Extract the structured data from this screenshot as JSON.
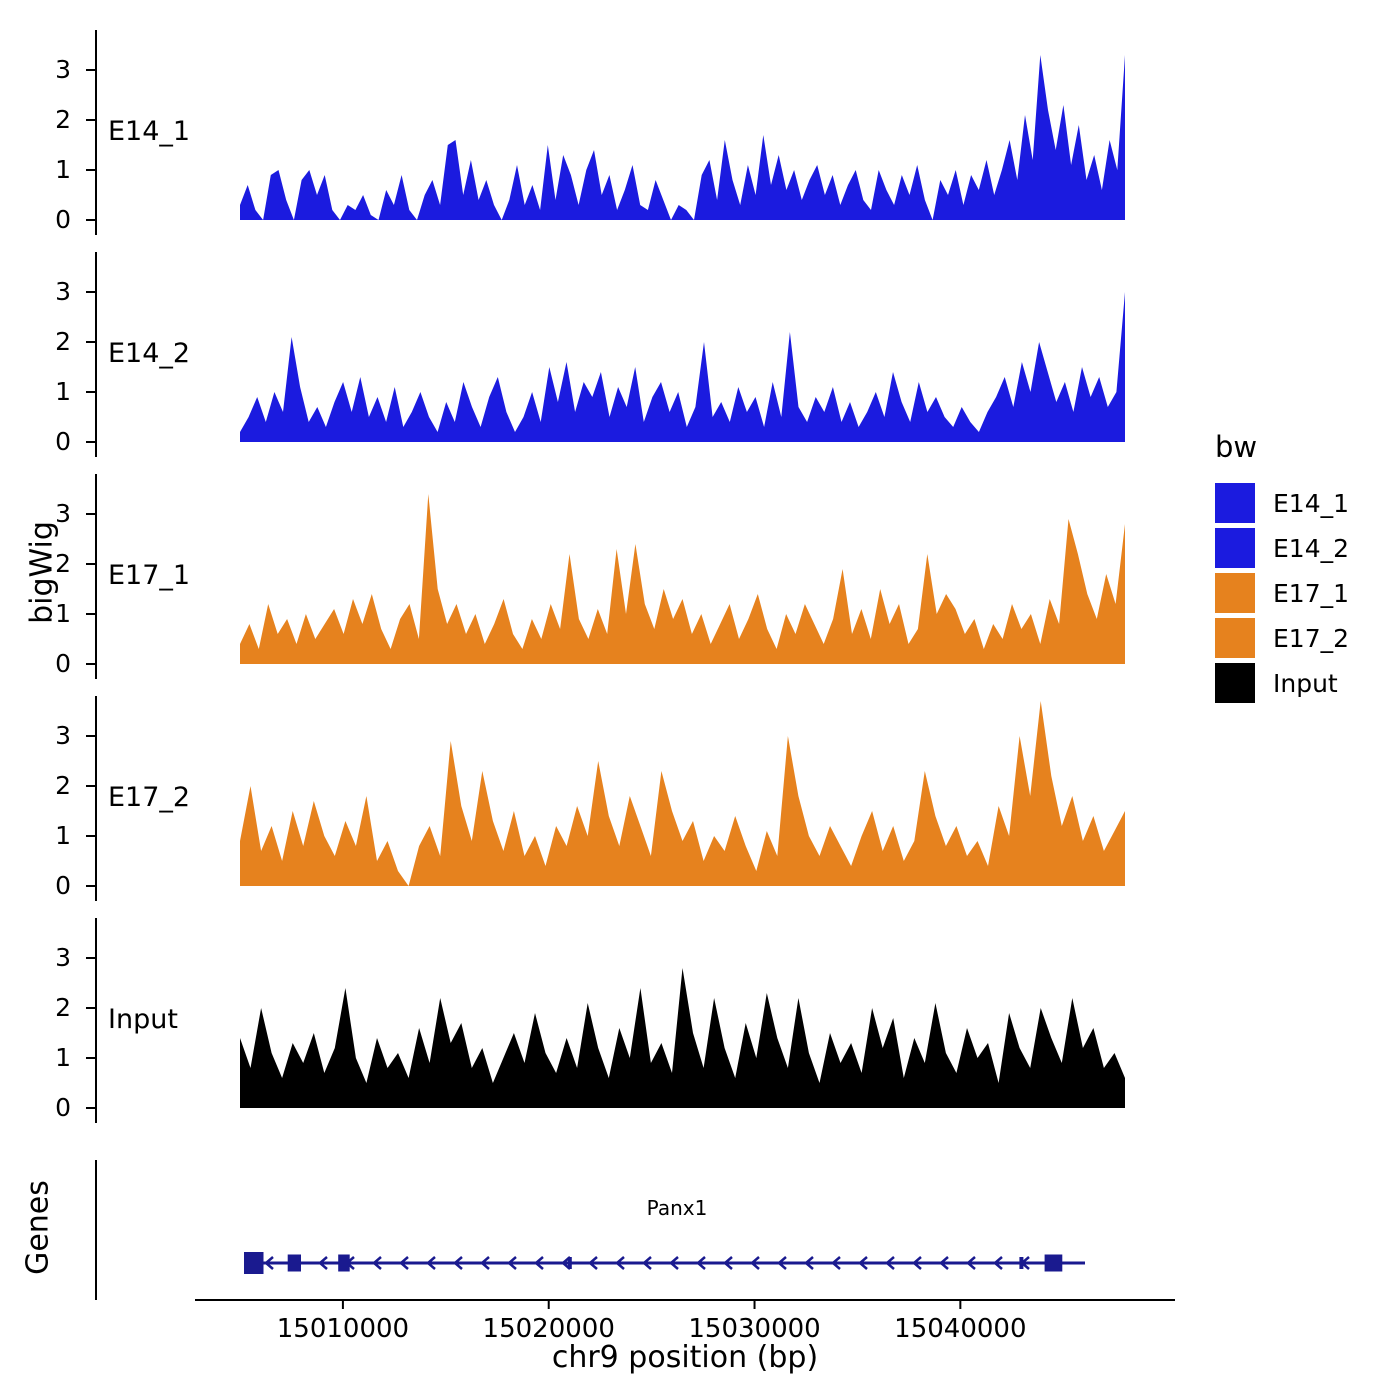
{
  "ylab": "bigWig",
  "genes_label": "Genes",
  "xlab": "chr9 position (bp)",
  "legend": {
    "title": "bw",
    "entries": [
      {
        "label": "E14_1",
        "color": "#1B1BDF"
      },
      {
        "label": "E14_2",
        "color": "#1B1BDF"
      },
      {
        "label": "E17_1",
        "color": "#E6821E"
      },
      {
        "label": "E17_2",
        "color": "#E6821E"
      },
      {
        "label": "Input",
        "color": "#000000"
      }
    ]
  },
  "chart_data": {
    "type": "area",
    "title": "",
    "xlabel": "chr9 position (bp)",
    "ylabel": "bigWig",
    "x_range": [
      15005000,
      15048000
    ],
    "x_ticks": [
      15010000,
      15020000,
      15030000,
      15040000
    ],
    "y_ticks": [
      0,
      1,
      2,
      3
    ],
    "ylim": [
      0,
      3.7
    ],
    "grid": false,
    "legend_position": "right",
    "tracks": [
      {
        "name": "E14_1",
        "color": "#1B1BDF",
        "values": [
          0.3,
          0.7,
          0.2,
          0,
          0.9,
          1.0,
          0.4,
          0,
          0.8,
          1.0,
          0.5,
          0.9,
          0.2,
          0,
          0.3,
          0.2,
          0.5,
          0.1,
          0,
          0.6,
          0.3,
          0.9,
          0.2,
          0,
          0.5,
          0.8,
          0.3,
          1.5,
          1.6,
          0.5,
          1.2,
          0.4,
          0.8,
          0.3,
          0,
          0.4,
          1.1,
          0.3,
          0.7,
          0.2,
          1.5,
          0.4,
          1.3,
          0.9,
          0.3,
          1.0,
          1.4,
          0.5,
          0.9,
          0.2,
          0.6,
          1.1,
          0.3,
          0.2,
          0.8,
          0.4,
          0,
          0.3,
          0.2,
          0,
          0.9,
          1.2,
          0.4,
          1.6,
          0.8,
          0.3,
          1.1,
          0.5,
          1.7,
          0.7,
          1.3,
          0.6,
          1.0,
          0.4,
          0.8,
          1.1,
          0.5,
          0.9,
          0.3,
          0.7,
          1.0,
          0.4,
          0.2,
          1.0,
          0.6,
          0.3,
          0.9,
          0.5,
          1.1,
          0.4,
          0,
          0.8,
          0.5,
          1.0,
          0.3,
          0.9,
          0.6,
          1.2,
          0.5,
          1.0,
          1.6,
          0.8,
          2.1,
          1.2,
          3.3,
          2.2,
          1.4,
          2.3,
          1.1,
          1.9,
          0.8,
          1.3,
          0.6,
          1.6,
          1.0,
          3.3
        ]
      },
      {
        "name": "E14_2",
        "color": "#1B1BDF",
        "values": [
          0.2,
          0.5,
          0.9,
          0.4,
          1.0,
          0.6,
          2.1,
          1.1,
          0.4,
          0.7,
          0.3,
          0.8,
          1.2,
          0.6,
          1.3,
          0.5,
          0.9,
          0.4,
          1.1,
          0.3,
          0.6,
          1.0,
          0.5,
          0.2,
          0.8,
          0.4,
          1.2,
          0.7,
          0.3,
          0.9,
          1.3,
          0.6,
          0.2,
          0.5,
          1.0,
          0.4,
          1.5,
          0.8,
          1.6,
          0.6,
          1.2,
          0.9,
          1.4,
          0.5,
          1.1,
          0.7,
          1.5,
          0.4,
          0.9,
          1.2,
          0.6,
          1.0,
          0.3,
          0.7,
          2.0,
          0.5,
          0.8,
          0.4,
          1.1,
          0.6,
          0.9,
          0.3,
          1.2,
          0.5,
          2.2,
          0.7,
          0.4,
          0.9,
          0.6,
          1.1,
          0.4,
          0.8,
          0.3,
          0.6,
          1.0,
          0.5,
          1.4,
          0.8,
          0.4,
          1.2,
          0.6,
          0.9,
          0.5,
          0.3,
          0.7,
          0.4,
          0.2,
          0.6,
          0.9,
          1.3,
          0.7,
          1.6,
          1.0,
          2.0,
          1.4,
          0.8,
          1.2,
          0.6,
          1.5,
          0.9,
          1.3,
          0.7,
          1.0,
          3.0
        ]
      },
      {
        "name": "E17_1",
        "color": "#E6821E",
        "values": [
          0.4,
          0.8,
          0.3,
          1.2,
          0.6,
          0.9,
          0.4,
          1.0,
          0.5,
          0.8,
          1.1,
          0.6,
          1.3,
          0.8,
          1.4,
          0.7,
          0.3,
          0.9,
          1.2,
          0.5,
          3.4,
          1.5,
          0.8,
          1.2,
          0.6,
          1.0,
          0.4,
          0.8,
          1.3,
          0.6,
          0.3,
          0.9,
          0.5,
          1.2,
          0.7,
          2.2,
          0.9,
          0.5,
          1.1,
          0.6,
          2.3,
          1.0,
          2.4,
          1.2,
          0.7,
          1.5,
          0.9,
          1.3,
          0.6,
          1.0,
          0.4,
          0.8,
          1.2,
          0.5,
          0.9,
          1.4,
          0.7,
          0.3,
          1.0,
          0.6,
          1.2,
          0.8,
          0.4,
          0.9,
          1.9,
          0.6,
          1.1,
          0.5,
          1.5,
          0.8,
          1.2,
          0.4,
          0.7,
          2.2,
          1.0,
          1.4,
          1.1,
          0.6,
          0.9,
          0.3,
          0.8,
          0.5,
          1.2,
          0.7,
          1.0,
          0.4,
          1.3,
          0.8,
          2.9,
          2.2,
          1.4,
          0.9,
          1.8,
          1.2,
          2.8
        ]
      },
      {
        "name": "E17_2",
        "color": "#E6821E",
        "values": [
          0.9,
          2.0,
          0.7,
          1.2,
          0.5,
          1.5,
          0.8,
          1.7,
          1.0,
          0.6,
          1.3,
          0.8,
          1.8,
          0.5,
          0.9,
          0.3,
          0,
          0.8,
          1.2,
          0.6,
          2.9,
          1.6,
          0.9,
          2.3,
          1.3,
          0.7,
          1.5,
          0.6,
          1.0,
          0.4,
          1.2,
          0.8,
          1.6,
          1.0,
          2.5,
          1.4,
          0.8,
          1.8,
          1.2,
          0.6,
          2.3,
          1.5,
          0.9,
          1.3,
          0.5,
          1.0,
          0.7,
          1.4,
          0.8,
          0.3,
          1.1,
          0.6,
          3.0,
          1.8,
          1.0,
          0.6,
          1.2,
          0.8,
          0.4,
          1.0,
          1.5,
          0.7,
          1.2,
          0.5,
          0.9,
          2.3,
          1.4,
          0.8,
          1.2,
          0.6,
          0.9,
          0.4,
          1.6,
          1.0,
          3.0,
          1.8,
          3.7,
          2.2,
          1.2,
          1.8,
          0.9,
          1.4,
          0.7,
          1.1,
          1.5
        ]
      },
      {
        "name": "Input",
        "color": "#000000",
        "values": [
          1.4,
          0.8,
          2.0,
          1.1,
          0.6,
          1.3,
          0.9,
          1.5,
          0.7,
          1.2,
          2.4,
          1.0,
          0.5,
          1.4,
          0.8,
          1.1,
          0.6,
          1.6,
          0.9,
          2.2,
          1.3,
          1.7,
          0.8,
          1.2,
          0.5,
          1.0,
          1.5,
          0.9,
          1.9,
          1.1,
          0.7,
          1.4,
          0.8,
          2.1,
          1.2,
          0.6,
          1.6,
          1.0,
          2.4,
          0.9,
          1.3,
          0.7,
          2.8,
          1.5,
          0.8,
          2.2,
          1.2,
          0.6,
          1.7,
          1.0,
          2.3,
          1.4,
          0.8,
          2.2,
          1.1,
          0.5,
          1.5,
          0.9,
          1.3,
          0.7,
          2.0,
          1.2,
          1.8,
          0.6,
          1.4,
          0.9,
          2.1,
          1.1,
          0.7,
          1.6,
          1.0,
          1.3,
          0.5,
          1.9,
          1.2,
          0.8,
          2.0,
          1.4,
          0.9,
          2.2,
          1.2,
          1.6,
          0.8,
          1.1,
          0.6
        ]
      }
    ],
    "gene": {
      "name": "Panx1",
      "chrom": "chr9",
      "strand": "-",
      "color": "#1A1A8F",
      "exons": [
        {
          "f": 0.0,
          "w": 0.022,
          "h": 22
        },
        {
          "f": 0.052,
          "w": 0.015,
          "h": 17
        },
        {
          "f": 0.112,
          "w": 0.013,
          "h": 17
        },
        {
          "f": 0.385,
          "w": 0.004,
          "h": 12
        },
        {
          "f": 0.922,
          "w": 0.004,
          "h": 12
        },
        {
          "f": 0.952,
          "w": 0.02,
          "h": 17
        }
      ]
    }
  }
}
